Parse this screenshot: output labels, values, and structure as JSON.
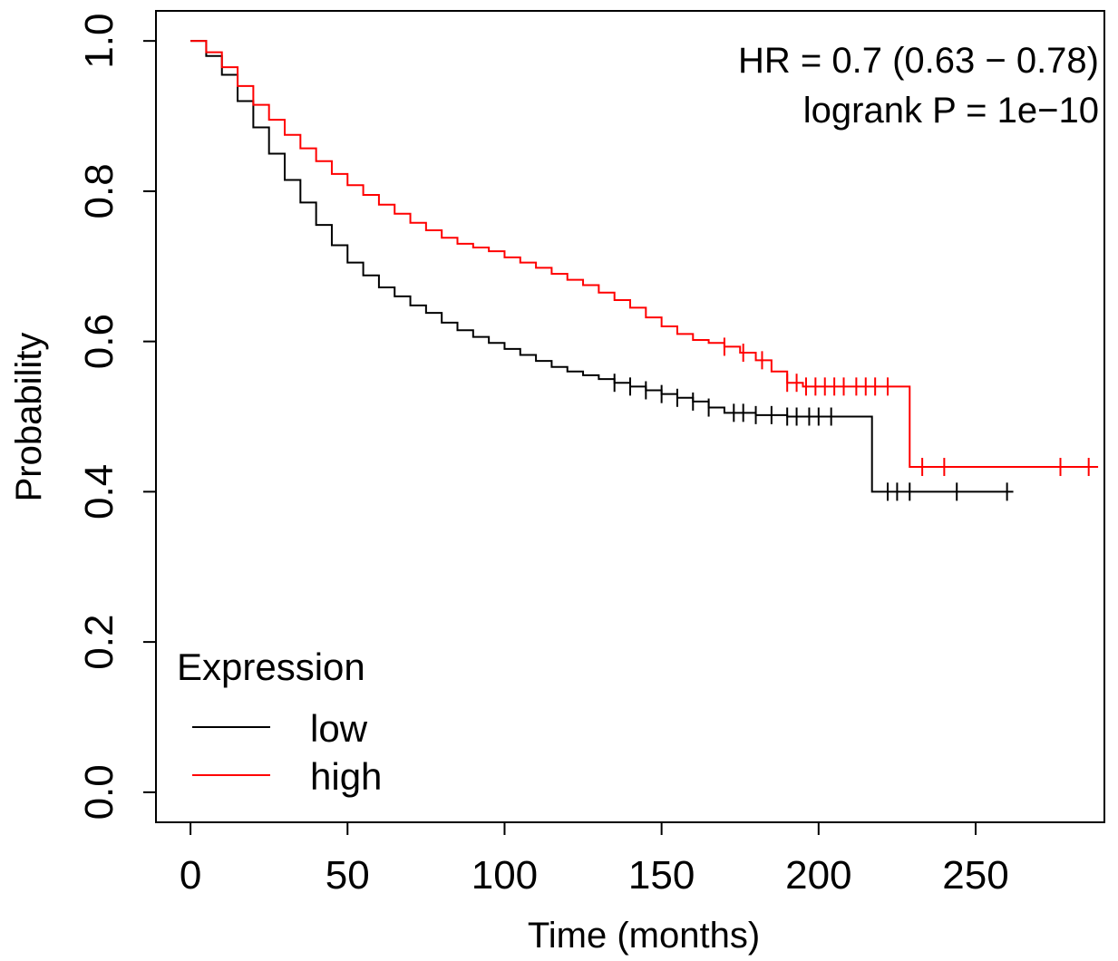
{
  "chart_data": {
    "type": "line",
    "step": true,
    "xlabel": "Time (months)",
    "ylabel": "Probability",
    "xlim": [
      -11,
      291
    ],
    "ylim": [
      -0.04,
      1.04
    ],
    "xticks": [
      "0",
      "50",
      "100",
      "150",
      "200",
      "250"
    ],
    "yticks": [
      "0.0",
      "0.2",
      "0.4",
      "0.6",
      "0.8",
      "1.0"
    ],
    "grid": false,
    "annotations": [
      "HR = 0.7 (0.63 − 0.78)",
      "logrank P = 1e−10"
    ],
    "legend": {
      "title": "Expression",
      "position": "bottom-left",
      "entries": [
        "low",
        "high"
      ]
    },
    "series": [
      {
        "name": "low",
        "color": "#000000",
        "points": [
          [
            0,
            1.0
          ],
          [
            5,
            0.98
          ],
          [
            10,
            0.955
          ],
          [
            15,
            0.92
          ],
          [
            20,
            0.885
          ],
          [
            25,
            0.85
          ],
          [
            30,
            0.815
          ],
          [
            35,
            0.785
          ],
          [
            40,
            0.755
          ],
          [
            45,
            0.728
          ],
          [
            50,
            0.705
          ],
          [
            55,
            0.688
          ],
          [
            60,
            0.672
          ],
          [
            65,
            0.66
          ],
          [
            70,
            0.648
          ],
          [
            75,
            0.638
          ],
          [
            80,
            0.625
          ],
          [
            85,
            0.615
          ],
          [
            90,
            0.606
          ],
          [
            95,
            0.598
          ],
          [
            100,
            0.59
          ],
          [
            105,
            0.582
          ],
          [
            110,
            0.574
          ],
          [
            115,
            0.566
          ],
          [
            120,
            0.56
          ],
          [
            125,
            0.555
          ],
          [
            130,
            0.55
          ],
          [
            135,
            0.545
          ],
          [
            140,
            0.54
          ],
          [
            145,
            0.535
          ],
          [
            150,
            0.53
          ],
          [
            155,
            0.525
          ],
          [
            160,
            0.52
          ],
          [
            165,
            0.512
          ],
          [
            170,
            0.505
          ],
          [
            180,
            0.502
          ],
          [
            190,
            0.5
          ],
          [
            200,
            0.5
          ],
          [
            210,
            0.5
          ],
          [
            217,
            0.5
          ],
          [
            217,
            0.4
          ],
          [
            262,
            0.4
          ]
        ],
        "censored": [
          222,
          225,
          229,
          244,
          260,
          173,
          176,
          180,
          185,
          190,
          193,
          197,
          200,
          204,
          165,
          160,
          155,
          150,
          145,
          140,
          135
        ]
      },
      {
        "name": "high",
        "color": "#ff0000",
        "points": [
          [
            0,
            1.0
          ],
          [
            5,
            0.985
          ],
          [
            10,
            0.965
          ],
          [
            15,
            0.94
          ],
          [
            20,
            0.915
          ],
          [
            25,
            0.895
          ],
          [
            30,
            0.875
          ],
          [
            35,
            0.857
          ],
          [
            40,
            0.84
          ],
          [
            45,
            0.823
          ],
          [
            50,
            0.808
          ],
          [
            55,
            0.795
          ],
          [
            60,
            0.782
          ],
          [
            65,
            0.77
          ],
          [
            70,
            0.758
          ],
          [
            75,
            0.748
          ],
          [
            80,
            0.738
          ],
          [
            85,
            0.73
          ],
          [
            90,
            0.725
          ],
          [
            95,
            0.72
          ],
          [
            100,
            0.712
          ],
          [
            105,
            0.705
          ],
          [
            110,
            0.698
          ],
          [
            115,
            0.69
          ],
          [
            120,
            0.682
          ],
          [
            125,
            0.675
          ],
          [
            130,
            0.665
          ],
          [
            135,
            0.655
          ],
          [
            140,
            0.645
          ],
          [
            145,
            0.632
          ],
          [
            150,
            0.62
          ],
          [
            155,
            0.61
          ],
          [
            160,
            0.602
          ],
          [
            165,
            0.598
          ],
          [
            170,
            0.593
          ],
          [
            175,
            0.585
          ],
          [
            180,
            0.575
          ],
          [
            185,
            0.56
          ],
          [
            190,
            0.545
          ],
          [
            195,
            0.54
          ],
          [
            200,
            0.54
          ],
          [
            229,
            0.54
          ],
          [
            229,
            0.433
          ],
          [
            289,
            0.433
          ]
        ],
        "censored": [
          190,
          193,
          196,
          199,
          202,
          205,
          208,
          212,
          215,
          218,
          222,
          233,
          240,
          277,
          286,
          170,
          176,
          182
        ]
      }
    ]
  }
}
